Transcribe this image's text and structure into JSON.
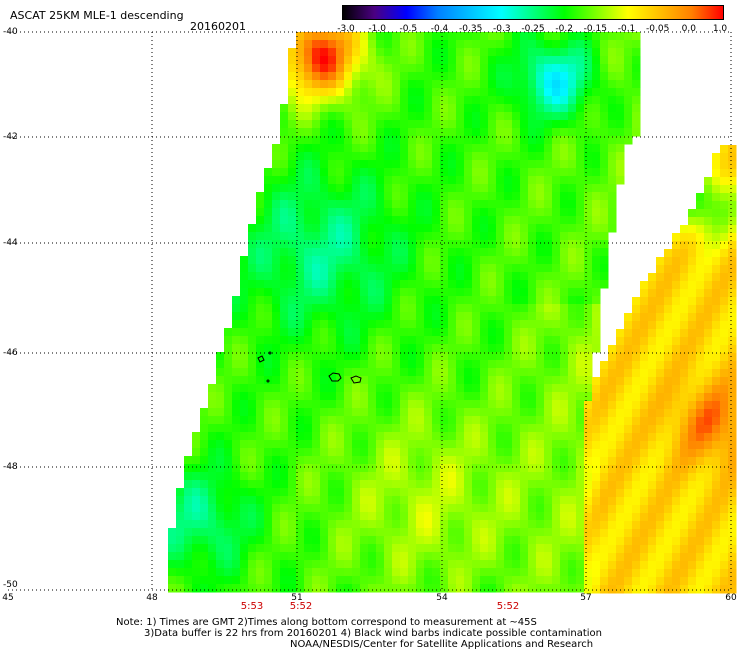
{
  "header": {
    "title": "ASCAT 25KM MLE-1 descending",
    "date": "20160201"
  },
  "colorbar": {
    "labels": [
      "-3.0",
      "-1.0",
      "-0.5",
      "-0.4",
      "-0.35",
      "-0.3",
      "-0.25",
      "-0.2",
      "-0.15",
      "-0.1",
      "-0.05",
      "0.0",
      "1.0"
    ],
    "colors": [
      "#000000",
      "#4b0082",
      "#0000ff",
      "#0080ff",
      "#00c0ff",
      "#00ffff",
      "#00ff80",
      "#00ff00",
      "#80ff00",
      "#ffff00",
      "#ffc000",
      "#ff8000",
      "#ff0000"
    ]
  },
  "axes": {
    "lat_labels": [
      "-40",
      "-42",
      "-44",
      "-46",
      "-48",
      "-50"
    ],
    "lon_labels": [
      "45",
      "48",
      "51",
      "54",
      "57",
      "60"
    ]
  },
  "times": [
    "5:53",
    "5:52",
    "5:52"
  ],
  "notes": {
    "line1": "Note: 1) Times are GMT 2)Times along bottom correspond to measurement at ~45S",
    "line2": "3)Data buffer is 22 hrs from 20160201 4) Black wind barbs indicate possible contamination",
    "line3": "NOAA/NESDIS/Center for Satellite Applications and Research"
  }
}
